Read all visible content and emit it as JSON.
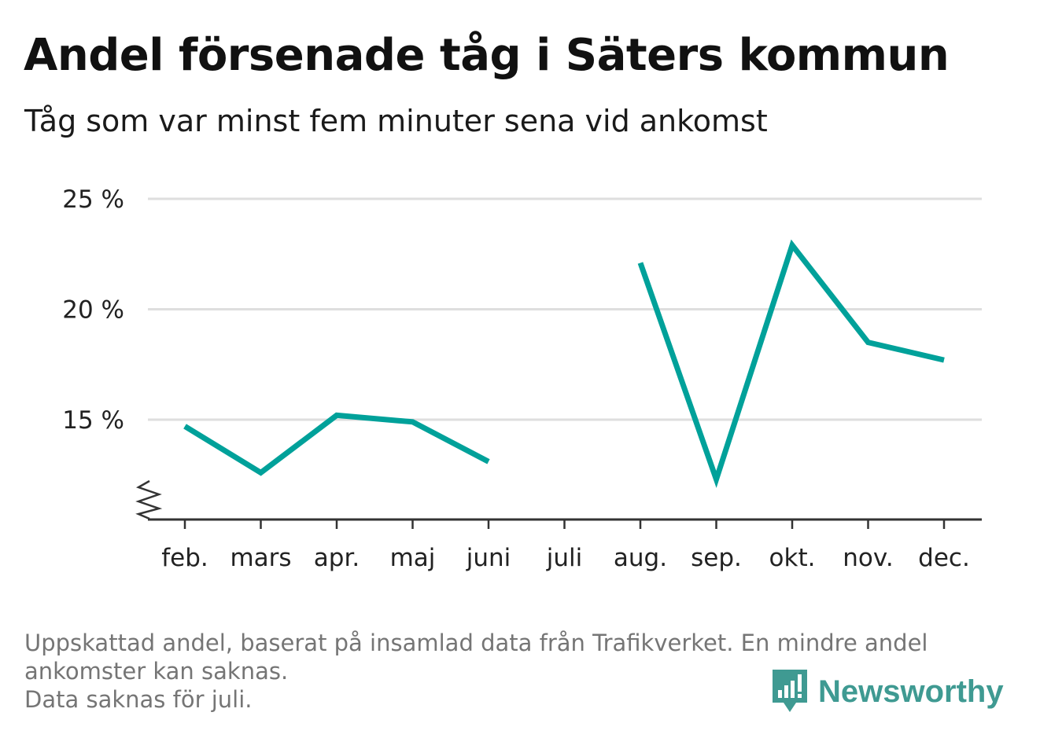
{
  "title": "Andel försenade tåg i Säters kommun",
  "subtitle": "Tåg som var minst fem minuter sena vid ankomst",
  "footnote": {
    "line1": "Uppskattad andel, baserat på insamlad data från Trafikverket. En mindre andel",
    "line2": "ankomster kan saknas.",
    "line3": "Data saknas för juli."
  },
  "brand": {
    "name": "Newsworthy",
    "icon": "newsworthy-logo-icon",
    "color": "#3f9a92"
  },
  "chart_data": {
    "type": "line",
    "categories": [
      "feb.",
      "mars",
      "apr.",
      "maj",
      "juni",
      "juli",
      "aug.",
      "sep.",
      "okt.",
      "nov.",
      "dec."
    ],
    "series": [
      {
        "values": [
          14.7,
          12.6,
          15.2,
          14.9,
          13.1,
          null,
          22.1,
          12.3,
          22.9,
          18.5,
          17.7
        ],
        "color": "#00a19a"
      }
    ],
    "yticks": [
      15,
      20,
      25
    ],
    "ytick_labels": [
      "15 %",
      "20 %",
      "25 %"
    ],
    "ylim": [
      10.5,
      25
    ],
    "y_axis_break": true,
    "grid": true,
    "xlabel": "",
    "ylabel": ""
  }
}
